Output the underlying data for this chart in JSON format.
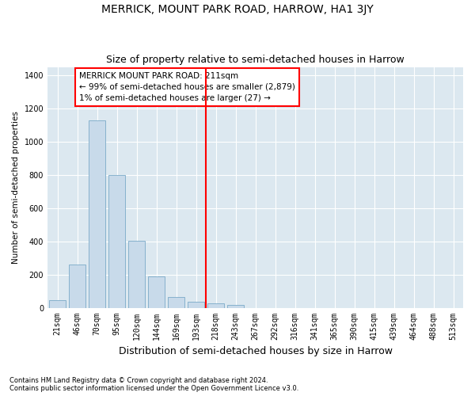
{
  "title": "MERRICK, MOUNT PARK ROAD, HARROW, HA1 3JY",
  "subtitle": "Size of property relative to semi-detached houses in Harrow",
  "xlabel": "Distribution of semi-detached houses by size in Harrow",
  "ylabel": "Number of semi-detached properties",
  "footer_line1": "Contains HM Land Registry data © Crown copyright and database right 2024.",
  "footer_line2": "Contains public sector information licensed under the Open Government Licence v3.0.",
  "bin_labels": [
    "21sqm",
    "46sqm",
    "70sqm",
    "95sqm",
    "120sqm",
    "144sqm",
    "169sqm",
    "193sqm",
    "218sqm",
    "243sqm",
    "267sqm",
    "292sqm",
    "316sqm",
    "341sqm",
    "365sqm",
    "390sqm",
    "415sqm",
    "439sqm",
    "464sqm",
    "488sqm",
    "513sqm"
  ],
  "bar_values": [
    45,
    258,
    1130,
    800,
    405,
    190,
    65,
    35,
    25,
    15,
    0,
    0,
    0,
    0,
    0,
    0,
    0,
    0,
    0,
    0,
    0
  ],
  "bar_color": "#c8daea",
  "bar_edgecolor": "#7aaac8",
  "vline_bin_index": 8,
  "vline_color": "red",
  "annotation_title": "MERRICK MOUNT PARK ROAD: 211sqm",
  "annotation_line1": "← 99% of semi-detached houses are smaller (2,879)",
  "annotation_line2": "1% of semi-detached houses are larger (27) →",
  "ylim": [
    0,
    1450
  ],
  "yticks": [
    0,
    200,
    400,
    600,
    800,
    1000,
    1200,
    1400
  ],
  "fig_bg_color": "#ffffff",
  "plot_bg_color": "#dce8f0",
  "title_fontsize": 10,
  "subtitle_fontsize": 9,
  "xlabel_fontsize": 9,
  "ylabel_fontsize": 7.5,
  "tick_fontsize": 7,
  "footer_fontsize": 6,
  "annotation_fontsize": 7.5
}
